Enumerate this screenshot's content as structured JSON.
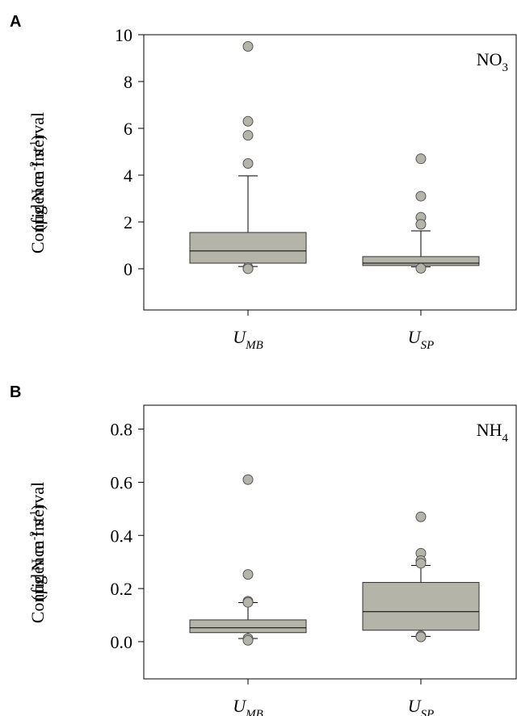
{
  "chart_data": [
    {
      "type": "box",
      "panel": "A",
      "annotation": {
        "text": "NO",
        "sub": "3"
      },
      "ylabel": [
        "Confidence Interval",
        [
          "(µg N m",
          "-2",
          " s",
          "-1",
          ")"
        ]
      ],
      "categories": [
        {
          "text": "U",
          "sub": "MB"
        },
        {
          "text": "U",
          "sub": "SP"
        }
      ],
      "color": "#b5b4a9",
      "boxes": [
        {
          "low": 0.1,
          "q1": 0.24,
          "median": 0.76,
          "q3": 1.55,
          "high": 3.97,
          "outliers": [
            9.5,
            6.3,
            5.7,
            4.5,
            0.05,
            0.0
          ]
        },
        {
          "low": 0.08,
          "q1": 0.14,
          "median": 0.24,
          "q3": 0.52,
          "high": 1.62,
          "outliers": [
            4.7,
            3.1,
            2.2,
            1.9,
            0.02
          ]
        }
      ],
      "ylim": [
        -1.76,
        10
      ],
      "yticks": [
        0,
        2,
        4,
        6,
        8,
        10
      ]
    },
    {
      "type": "box",
      "panel": "B",
      "annotation": {
        "text": "NH",
        "sub": "4"
      },
      "ylabel": [
        "Confidence Interval",
        [
          "(µg N m",
          "-2",
          " s",
          "-1",
          ")"
        ]
      ],
      "categories": [
        {
          "text": "U",
          "sub": "MB"
        },
        {
          "text": "U",
          "sub": "SP"
        }
      ],
      "color": "#b5b4a9",
      "boxes": [
        {
          "low": 0.012,
          "q1": 0.034,
          "median": 0.052,
          "q3": 0.082,
          "high": 0.147,
          "outliers": [
            0.61,
            0.253,
            0.152,
            0.148,
            0.012,
            0.005
          ]
        },
        {
          "low": 0.02,
          "q1": 0.043,
          "median": 0.113,
          "q3": 0.223,
          "high": 0.287,
          "outliers": [
            0.47,
            0.333,
            0.305,
            0.295,
            0.022,
            0.018
          ]
        }
      ],
      "ylim": [
        -0.14,
        0.89
      ],
      "yticks": [
        {
          "value": 0,
          "label": "0.0"
        },
        0.2,
        0.4,
        0.6,
        0.8
      ]
    }
  ]
}
